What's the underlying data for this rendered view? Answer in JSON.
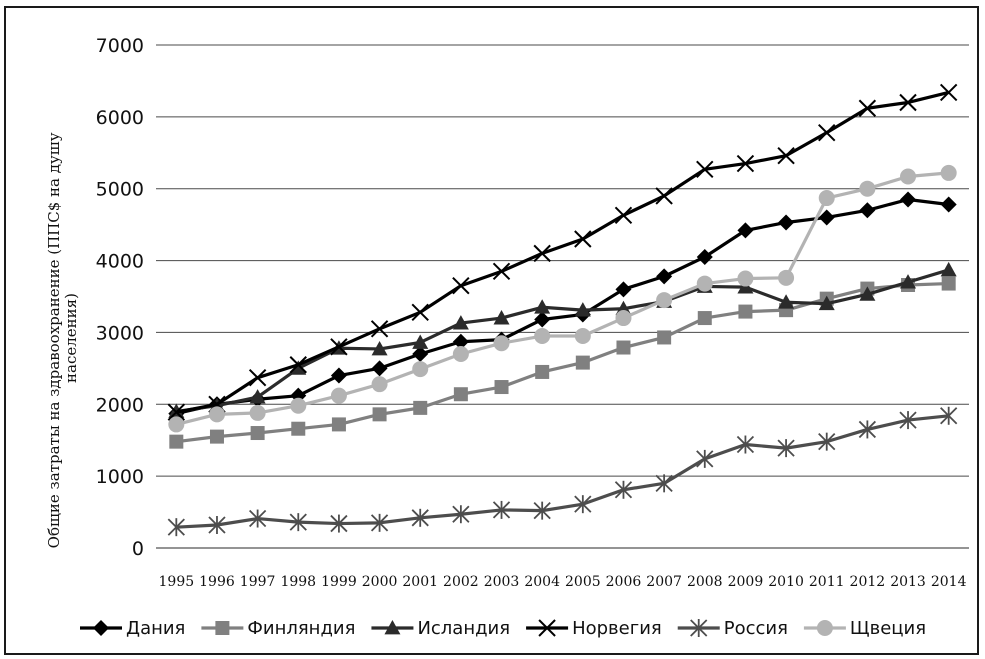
{
  "chart_data": {
    "type": "line",
    "ylabel_lines": [
      "Общие затраты на здравоохранение (ППС$ на душу",
      "населения)"
    ],
    "ylim": [
      0,
      7000
    ],
    "yticks": [
      0,
      1000,
      2000,
      3000,
      4000,
      5000,
      6000,
      7000
    ],
    "grid": "horizontal",
    "legend_position": "bottom",
    "x": [
      "1995",
      "1996",
      "1997",
      "1998",
      "1999",
      "2000",
      "2001",
      "2002",
      "2003",
      "2004",
      "2005",
      "2006",
      "2007",
      "2008",
      "2009",
      "2010",
      "2011",
      "2012",
      "2013",
      "2014"
    ],
    "series": [
      {
        "name": "Дания",
        "color": "#000000",
        "marker": "diamond",
        "values": [
          1870,
          2000,
          2070,
          2120,
          2400,
          2500,
          2700,
          2870,
          2900,
          3180,
          3250,
          3600,
          3780,
          4050,
          4420,
          4530,
          4600,
          4700,
          4850,
          4780
        ]
      },
      {
        "name": "Финляндия",
        "color": "#808080",
        "marker": "square",
        "values": [
          1480,
          1550,
          1600,
          1660,
          1720,
          1860,
          1950,
          2140,
          2240,
          2450,
          2580,
          2790,
          2930,
          3200,
          3290,
          3310,
          3470,
          3610,
          3660,
          3680
        ]
      },
      {
        "name": "Исландия",
        "color": "#2b2b2b",
        "marker": "triangle",
        "values": [
          1900,
          1980,
          2100,
          2500,
          2780,
          2770,
          2860,
          3130,
          3200,
          3350,
          3310,
          3330,
          3430,
          3640,
          3630,
          3420,
          3400,
          3530,
          3700,
          3870
        ]
      },
      {
        "name": "Норвегия",
        "color": "#000000",
        "marker": "x",
        "values": [
          1890,
          2000,
          2370,
          2550,
          2800,
          3050,
          3280,
          3650,
          3850,
          4100,
          4300,
          4630,
          4900,
          5270,
          5350,
          5460,
          5780,
          6120,
          6200,
          6340
        ]
      },
      {
        "name": "Россия",
        "color": "#4d4d4d",
        "marker": "star",
        "values": [
          290,
          320,
          410,
          360,
          340,
          350,
          420,
          470,
          530,
          520,
          610,
          810,
          900,
          1240,
          1440,
          1390,
          1480,
          1650,
          1780,
          1840
        ]
      },
      {
        "name": "Щвеция",
        "color": "#b3b3b3",
        "marker": "circle",
        "values": [
          1720,
          1860,
          1880,
          1980,
          2120,
          2280,
          2490,
          2700,
          2850,
          2950,
          2950,
          3200,
          3450,
          3680,
          3750,
          3760,
          4870,
          5000,
          5170,
          5220
        ]
      }
    ]
  }
}
